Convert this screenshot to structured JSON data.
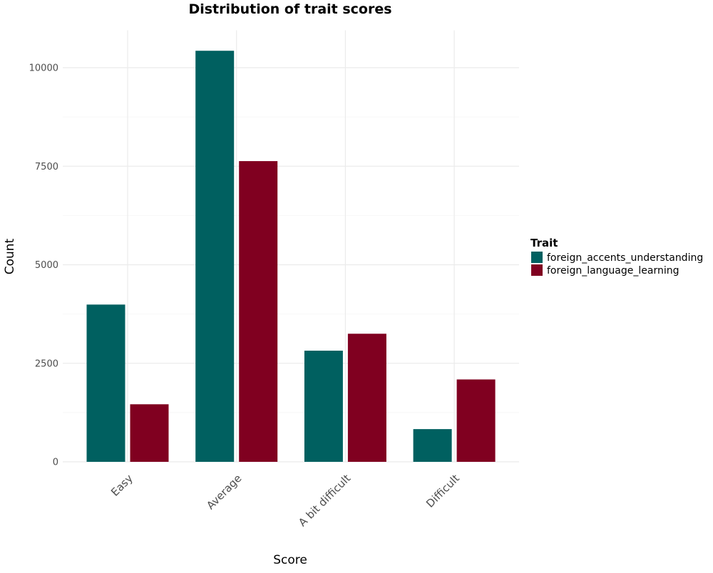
{
  "chart_data": {
    "type": "bar",
    "title": "Distribution of trait scores",
    "xlabel": "Score",
    "ylabel": "Count",
    "categories": [
      "Easy",
      "Average",
      "A bit difficult",
      "Difficult"
    ],
    "series": [
      {
        "name": "foreign_accents_understanding",
        "color": "#006060",
        "values": [
          3990,
          10430,
          2820,
          830
        ]
      },
      {
        "name": "foreign_language_learning",
        "color": "#800020",
        "values": [
          1460,
          7630,
          3250,
          2090
        ]
      }
    ],
    "ylim": [
      0,
      10950
    ],
    "yticks": [
      0,
      2500,
      5000,
      7500,
      10000
    ],
    "ytick_labels": [
      "0",
      "2500",
      "5000",
      "7500",
      "10000"
    ],
    "grid": true,
    "legend": {
      "title": "Trait",
      "position": "right"
    }
  }
}
